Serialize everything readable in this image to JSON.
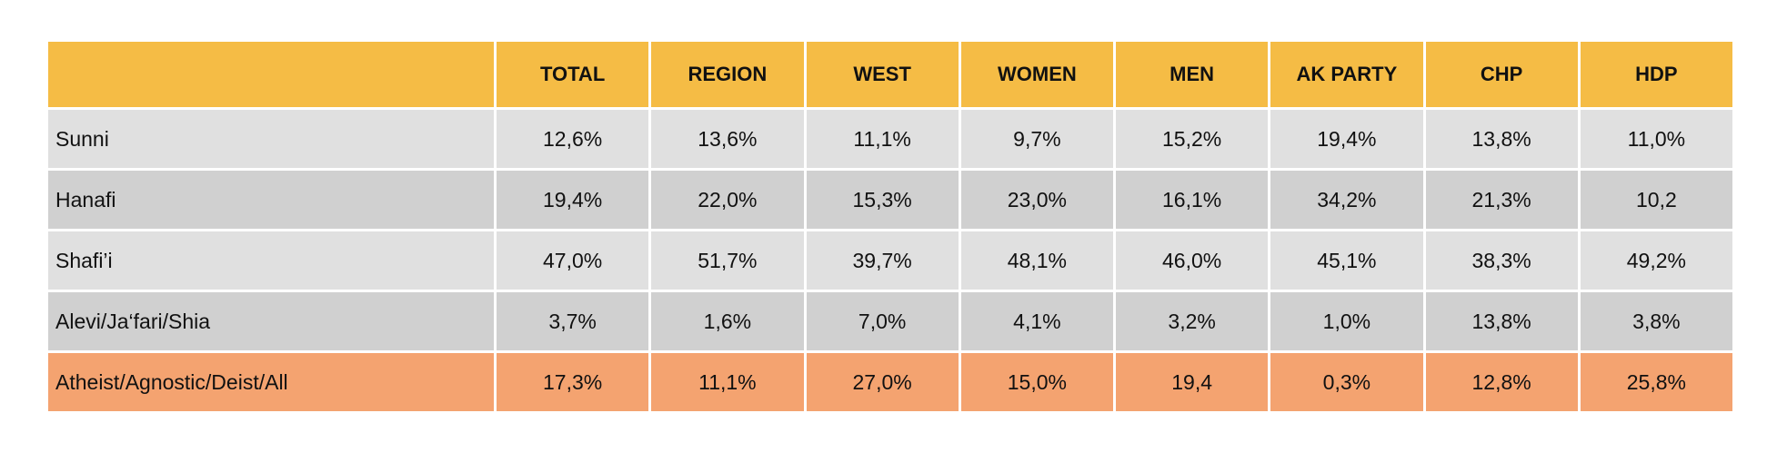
{
  "colors": {
    "header": "#f5bc45",
    "row_light": "#e0e0e0",
    "row_dark": "#d0d0d0",
    "row_highlight": "#f4a370"
  },
  "chart_data": {
    "type": "table",
    "columns": [
      "TOTAL",
      "REGION",
      "WEST",
      "WOMEN",
      "MEN",
      "AK PARTY",
      "CHP",
      "HDP"
    ],
    "rows": [
      {
        "label": "Sunni",
        "values": [
          "12,6%",
          "13,6%",
          "11,1%",
          "9,7%",
          "15,2%",
          "19,4%",
          "13,8%",
          "11,0%"
        ],
        "style": "row_light"
      },
      {
        "label": "Hanafi",
        "values": [
          "19,4%",
          "22,0%",
          "15,3%",
          "23,0%",
          "16,1%",
          "34,2%",
          "21,3%",
          "10,2"
        ],
        "style": "row_dark"
      },
      {
        "label": "Shafi’i",
        "values": [
          "47,0%",
          "51,7%",
          "39,7%",
          "48,1%",
          "46,0%",
          "45,1%",
          "38,3%",
          "49,2%"
        ],
        "style": "row_light"
      },
      {
        "label": "Alevi/Ja‘fari/Shia",
        "values": [
          "3,7%",
          "1,6%",
          "7,0%",
          "4,1%",
          "3,2%",
          "1,0%",
          "13,8%",
          "3,8%"
        ],
        "style": "row_dark"
      },
      {
        "label": "Atheist/Agnostic/Deist/All",
        "values": [
          "17,3%",
          "11,1%",
          "27,0%",
          "15,0%",
          "19,4",
          "0,3%",
          "12,8%",
          "25,8%"
        ],
        "style": "row_highlight"
      }
    ]
  }
}
